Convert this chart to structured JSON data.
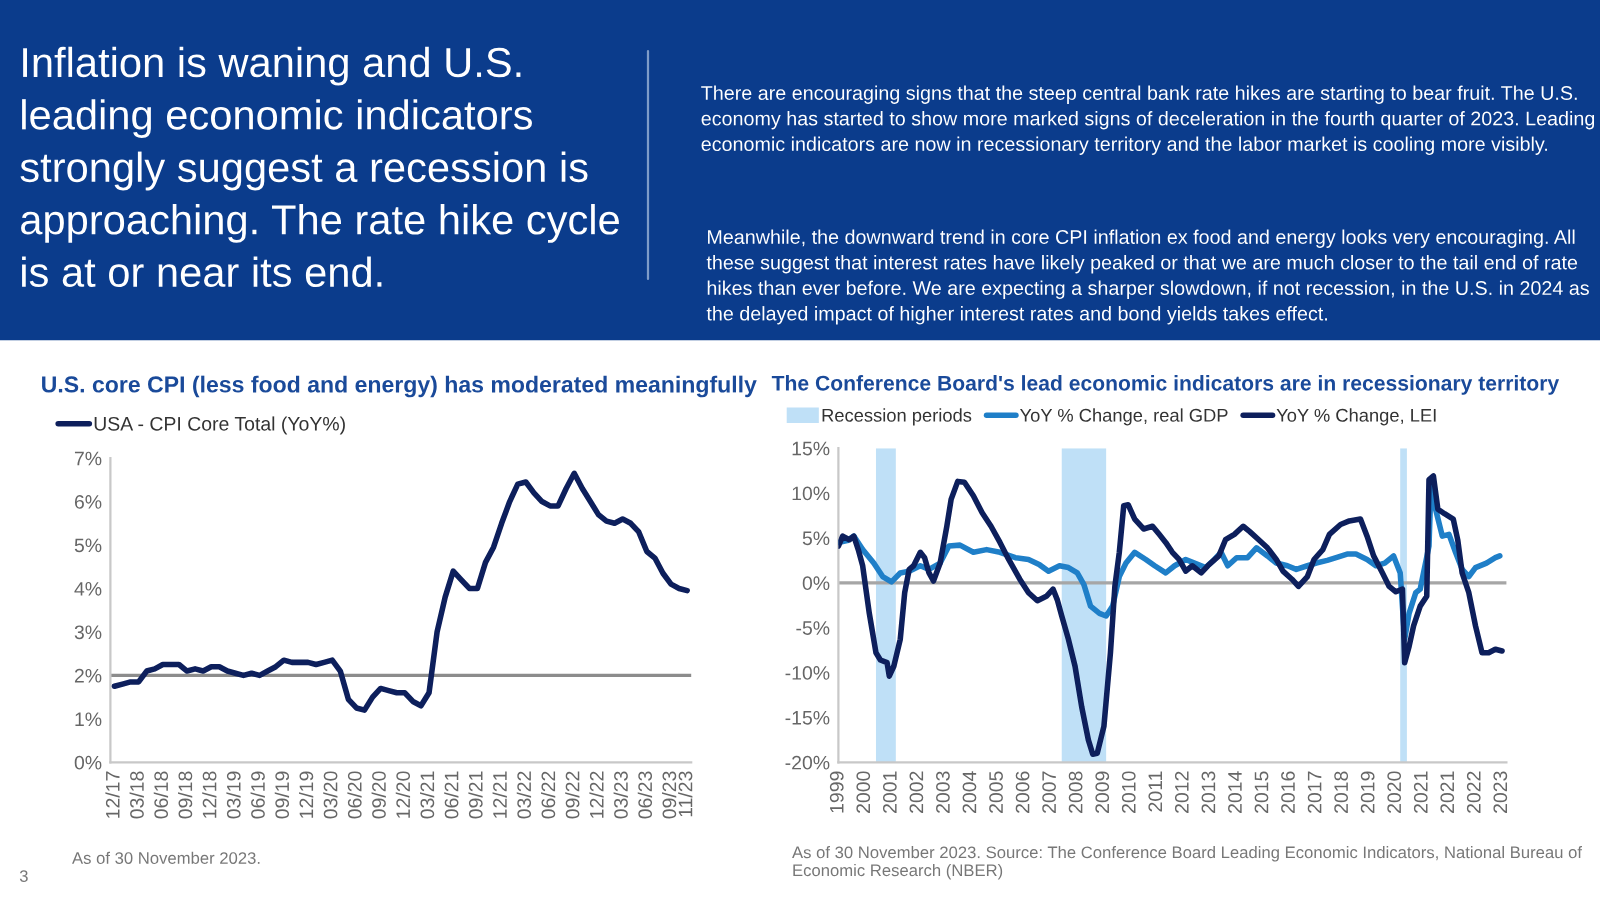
{
  "chart_data": [
    {
      "type": "other",
      "title": "Inflation is waning and U.S. leading economic indicators strongly suggest a recession is approaching. The rate hike cycle is at or near its end.",
      "annotations": [
        "There are encouraging signs that the steep central bank rate hikes are starting to bear fruit. The U.S. economy has started to show more marked signs of deceleration in the fourth quarter of 2023. Leading economic indicators are now in recessionary territory and the labor market is cooling more visibly.",
        "Meanwhile, the downward trend in core CPI inflation ex food and energy looks very encouraging. All these suggest that interest rates have likely peaked or that we are much closer to the tail end of rate hikes than ever before. We are expecting a sharper slowdown, if not recession, in the U.S. in 2024 as the delayed impact of higher interest rates and bond yields takes effect."
      ]
    },
    {
      "type": "line",
      "title": "U.S. core CPI (less food and energy) has moderated meaningfully",
      "categories": [
        "12/17",
        null,
        null,
        "03/18",
        null,
        null,
        "06/18",
        null,
        null,
        "09/18",
        null,
        null,
        "12/18",
        null,
        null,
        "03/19",
        null,
        null,
        "06/19",
        null,
        null,
        "09/19",
        null,
        null,
        "12/19",
        null,
        null,
        "03/20",
        null,
        null,
        "06/20",
        null,
        null,
        "09/20",
        null,
        null,
        "12/20",
        null,
        null,
        "03/21",
        null,
        null,
        "06/21",
        null,
        null,
        "09/21",
        null,
        null,
        "12/21",
        null,
        null,
        "03/22",
        null,
        null,
        "06/22",
        null,
        null,
        "09/22",
        null,
        null,
        "12/22",
        null,
        null,
        "03/23",
        null,
        null,
        "06/23",
        null,
        null,
        "09/23",
        null,
        "11/23"
      ],
      "series": [
        {
          "name": "USA - CPI Core Total (YoY%)",
          "color": "#0d1f5c",
          "values": [
            1.75,
            1.8,
            1.85,
            1.85,
            2.1,
            2.15,
            2.25,
            2.25,
            2.25,
            2.1,
            2.15,
            2.1,
            2.2,
            2.2,
            2.1,
            2.05,
            2.0,
            2.05,
            2.0,
            2.1,
            2.2,
            2.35,
            2.3,
            2.3,
            2.3,
            2.25,
            2.3,
            2.35,
            2.1,
            1.45,
            1.25,
            1.2,
            1.5,
            1.7,
            1.65,
            1.6,
            1.6,
            1.4,
            1.3,
            1.6,
            3.0,
            3.8,
            4.4,
            4.2,
            4.0,
            4.0,
            4.6,
            4.95,
            5.5,
            6.0,
            6.4,
            6.45,
            6.2,
            6.0,
            5.9,
            5.9,
            6.3,
            6.65,
            6.3,
            6.0,
            5.7,
            5.55,
            5.5,
            5.6,
            5.5,
            5.3,
            4.85,
            4.7,
            4.35,
            4.1,
            4.0,
            3.95
          ]
        }
      ],
      "ylim": [
        0,
        7
      ],
      "yticks": [
        {
          "value": 0,
          "label": "0%"
        },
        {
          "value": 1,
          "label": "1%"
        },
        {
          "value": 2,
          "label": "2%"
        },
        {
          "value": 3,
          "label": "3%"
        },
        {
          "value": 4,
          "label": "4%"
        },
        {
          "value": 5,
          "label": "5%"
        },
        {
          "value": 6,
          "label": "6%"
        },
        {
          "value": 7,
          "label": "7%"
        }
      ],
      "ref_lines": [
        {
          "axis": "y",
          "value": 2,
          "color": "#8c8c8c"
        }
      ],
      "legend": "top left",
      "grid": false,
      "annotations": [
        "As of 30 November 2023.",
        "3"
      ]
    },
    {
      "type": "line",
      "title": "The Conference Board's lead economic indicators are in recessionary territory",
      "series": [
        {
          "name": "YoY % Change, real GDP",
          "color": "#1f7fc8",
          "x": [
            "1999-01",
            "1999-05",
            "1999-08",
            "1999-12",
            "2000-05",
            "2000-09",
            "2001-01",
            "2001-05",
            "2001-09",
            "2002-02",
            "2002-06",
            "2002-11",
            "2003-03",
            "2003-08",
            "2004-02",
            "2004-08",
            "2005-02",
            "2005-09",
            "2006-03",
            "2006-08",
            "2006-12",
            "2007-05",
            "2007-09",
            "2008-01",
            "2008-04",
            "2008-07",
            "2008-11",
            "2009-02",
            "2009-05",
            "2009-08",
            "2009-11",
            "2010-03",
            "2010-08",
            "2010-12",
            "2011-05",
            "2011-09",
            "2012-02",
            "2012-06",
            "2012-11",
            "2013-03",
            "2013-06",
            "2013-09",
            "2014-01",
            "2014-06",
            "2014-10",
            "2015-03",
            "2015-07",
            "2015-12",
            "2016-04",
            "2016-09",
            "2017-01",
            "2017-06",
            "2017-10",
            "2018-03",
            "2018-07",
            "2018-12",
            "2019-04",
            "2019-08",
            "2019-12",
            "2020-03",
            "2020-05",
            "2020-07",
            "2020-10",
            "2020-12",
            "2021-04",
            "2021-05",
            "2021-07",
            "2021-10",
            "2022-01",
            "2022-04",
            "2022-07",
            "2022-10",
            "2023-01",
            "2023-06",
            "2023-10",
            "2023-12"
          ],
          "values": [
            4.5,
            4.7,
            5.2,
            3.7,
            2.2,
            0.7,
            0.1,
            1.1,
            1.3,
            1.9,
            1.5,
            2.2,
            4.1,
            4.2,
            3.4,
            3.7,
            3.4,
            2.8,
            2.6,
            2.0,
            1.3,
            1.9,
            1.7,
            1.1,
            -0.2,
            -2.6,
            -3.4,
            -3.7,
            -2.6,
            0.7,
            2.2,
            3.4,
            2.6,
            1.9,
            1.1,
            1.9,
            2.6,
            2.2,
            1.7,
            2.6,
            3.4,
            1.9,
            2.8,
            2.8,
            3.9,
            3.0,
            2.2,
            1.9,
            1.5,
            1.9,
            2.2,
            2.5,
            2.8,
            3.2,
            3.2,
            2.6,
            1.9,
            2.2,
            3.0,
            1.1,
            -6.3,
            -3.4,
            -1.1,
            -0.7,
            4.1,
            11.5,
            8.2,
            5.2,
            5.4,
            3.4,
            1.5,
            0.7,
            1.7,
            2.2,
            2.8,
            3.0
          ]
        },
        {
          "name": "YoY % Change, LEI",
          "color": "#0d1f5c",
          "x": [
            "1999-01",
            "1999-03",
            "1999-06",
            "1999-08",
            "1999-10",
            "1999-12",
            "2000-03",
            "2000-06",
            "2000-08",
            "2000-11",
            "2000-12",
            "2001-02",
            "2001-05",
            "2001-07",
            "2001-09",
            "2001-11",
            "2002-02",
            "2002-04",
            "2002-06",
            "2002-08",
            "2002-11",
            "2003-02",
            "2003-04",
            "2003-07",
            "2003-10",
            "2004-02",
            "2004-06",
            "2004-10",
            "2005-02",
            "2005-06",
            "2005-11",
            "2006-03",
            "2006-07",
            "2006-11",
            "2007-02",
            "2007-04",
            "2007-06",
            "2007-09",
            "2007-12",
            "2008-03",
            "2008-06",
            "2008-08",
            "2008-10",
            "2009-01",
            "2009-04",
            "2009-06",
            "2009-08",
            "2009-10",
            "2009-12",
            "2010-03",
            "2010-07",
            "2010-11",
            "2011-02",
            "2011-05",
            "2011-08",
            "2011-11",
            "2012-02",
            "2012-05",
            "2012-09",
            "2012-12",
            "2013-05",
            "2013-08",
            "2013-12",
            "2014-04",
            "2014-07",
            "2014-11",
            "2015-03",
            "2015-07",
            "2015-10",
            "2016-02",
            "2016-05",
            "2016-09",
            "2016-12",
            "2017-04",
            "2017-07",
            "2017-12",
            "2018-04",
            "2018-09",
            "2018-12",
            "2019-03",
            "2019-07",
            "2019-10",
            "2020-01",
            "2020-04",
            "2020-05",
            "2020-07",
            "2020-09",
            "2020-12",
            "2021-03",
            "2021-04",
            "2021-06",
            "2021-08",
            "2021-11",
            "2022-03",
            "2022-05",
            "2022-07",
            "2022-10",
            "2023-01",
            "2023-04",
            "2023-07",
            "2023-10",
            "2024-01"
          ],
          "values": [
            4.1,
            5.2,
            4.8,
            5.2,
            3.7,
            1.9,
            -3.4,
            -7.8,
            -8.6,
            -8.9,
            -10.4,
            -9.3,
            -6.3,
            -1.1,
            1.5,
            1.9,
            3.4,
            2.8,
            1.1,
            0.2,
            2.2,
            6.3,
            9.3,
            11.3,
            11.2,
            9.7,
            7.8,
            6.3,
            4.5,
            2.6,
            0.4,
            -1.1,
            -2.0,
            -1.5,
            -0.7,
            -1.9,
            -3.7,
            -6.3,
            -9.3,
            -13.8,
            -17.5,
            -19.1,
            -19.0,
            -16.0,
            -7.8,
            -0.4,
            3.4,
            8.6,
            8.7,
            7.1,
            6.0,
            6.3,
            5.4,
            4.5,
            3.4,
            2.6,
            1.3,
            1.9,
            1.1,
            1.9,
            3.0,
            4.8,
            5.4,
            6.3,
            5.7,
            4.8,
            3.9,
            2.6,
            1.3,
            0.4,
            -0.4,
            0.7,
            2.6,
            3.7,
            5.4,
            6.5,
            6.9,
            7.1,
            5.2,
            3.0,
            1.1,
            -0.4,
            -1.0,
            -0.7,
            -8.9,
            -7.1,
            -4.8,
            -2.6,
            -1.5,
            11.5,
            11.9,
            8.2,
            7.7,
            7.1,
            4.8,
            1.1,
            -1.1,
            -4.8,
            -7.8,
            -7.8,
            -7.4,
            -7.6
          ]
        }
      ],
      "bands": [
        {
          "axis": "x",
          "from": "2000-06",
          "to": "2001-03",
          "label": "Recession periods",
          "color": "#bfe0f7"
        },
        {
          "axis": "x",
          "from": "2007-06",
          "to": "2009-02",
          "color": "#bfe0f7"
        },
        {
          "axis": "x",
          "from": "2020-03",
          "to": "2020-06",
          "color": "#bfe0f7"
        }
      ],
      "ref_lines": [
        {
          "axis": "y",
          "value": 0,
          "color": "#a6a6a6"
        }
      ],
      "xlim": [
        "1999-01",
        "2024-03"
      ],
      "xticks": [
        {
          "value": "1999",
          "label": "1999"
        },
        {
          "value": "2000",
          "label": "2000"
        },
        {
          "value": "2001",
          "label": "2001"
        },
        {
          "value": "2002",
          "label": "2002"
        },
        {
          "value": "2003",
          "label": "2003"
        },
        {
          "value": "2004",
          "label": "2004"
        },
        {
          "value": "2005",
          "label": "2005"
        },
        {
          "value": "2006",
          "label": "2006"
        },
        {
          "value": "2007",
          "label": "2007"
        },
        {
          "value": "2008",
          "label": "2008"
        },
        {
          "value": "2009",
          "label": "2009"
        },
        {
          "value": "2010",
          "label": "2010"
        },
        {
          "value": "2011",
          "label": "2011"
        },
        {
          "value": "2012",
          "label": "2012"
        },
        {
          "value": "2013",
          "label": "2013"
        },
        {
          "value": "2014",
          "label": "2014"
        },
        {
          "value": "2015",
          "label": "2015"
        },
        {
          "value": "2016",
          "label": "2016"
        },
        {
          "value": "2017",
          "label": "2017"
        },
        {
          "value": "2018",
          "label": "2018"
        },
        {
          "value": "2019",
          "label": "2019"
        },
        {
          "value": "2020",
          "label": "2020"
        },
        {
          "value": "2021",
          "label": "2021"
        },
        {
          "value": "2021-12-31",
          "label": "2021"
        },
        {
          "value": "2022-12-31",
          "label": "2022"
        },
        {
          "value": "2023-12-31",
          "label": "2023"
        }
      ],
      "ylim": [
        -20,
        15
      ],
      "yticks": [
        {
          "value": -20,
          "label": "-20%"
        },
        {
          "value": -15,
          "label": "-15%"
        },
        {
          "value": -10,
          "label": "-10%"
        },
        {
          "value": -5,
          "label": "-5%"
        },
        {
          "value": 0,
          "label": "0%"
        },
        {
          "value": 5,
          "label": "5%"
        },
        {
          "value": 10,
          "label": "10%"
        },
        {
          "value": 15,
          "label": "15%"
        }
      ],
      "legend": "top left",
      "grid": false,
      "annotations": [
        "As of 30 November 2023. Source: The Conference Board Leading Economic Indicators, National Bureau of Economic Research (NBER)"
      ]
    }
  ]
}
